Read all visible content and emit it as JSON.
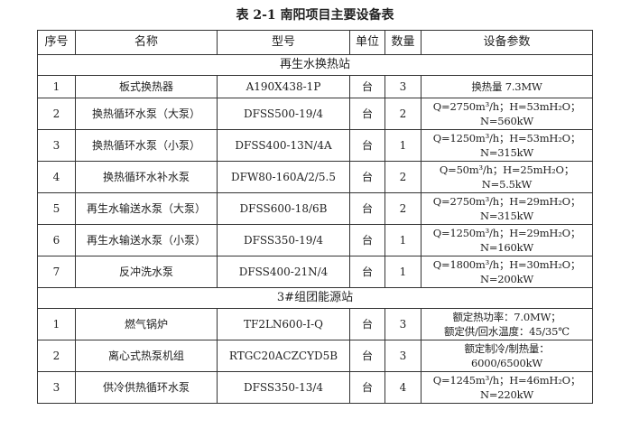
{
  "title": "表 2-1  南阳项目主要设备表",
  "headers": [
    "序号",
    "名称",
    "型号",
    "单位",
    "数量",
    "设备参数"
  ],
  "sections": [
    {
      "name": "再生水换热站",
      "rows": [
        {
          "no": "1",
          "name": "板式换热器",
          "model": "A190X438-1P",
          "unit": "台",
          "qty": "3",
          "params": [
            "换热量 7.3MW"
          ]
        },
        {
          "no": "2",
          "name": "换热循环水泵（大泵）",
          "model": "DFSS500-19/4",
          "unit": "台",
          "qty": "2",
          "params": [
            "Q=2750m³/h；H=53mH₂O；",
            "N=560kW"
          ]
        },
        {
          "no": "3",
          "name": "换热循环水泵（小泵）",
          "model": "DFSS400-13N/4A",
          "unit": "台",
          "qty": "1",
          "params": [
            "Q=1250m³/h；H=53mH₂O；",
            "N=315kW"
          ]
        },
        {
          "no": "4",
          "name": "换热循环水补水泵",
          "model": "DFW80-160A/2/5.5",
          "unit": "台",
          "qty": "2",
          "params": [
            "Q=50m³/h；H=25mH₂O；",
            "N=5.5kW"
          ]
        },
        {
          "no": "5",
          "name": "再生水输送水泵（大泵）",
          "model": "DFSS600-18/6B",
          "unit": "台",
          "qty": "2",
          "params": [
            "Q=2750m³/h；H=29mH₂O；",
            "N=315kW"
          ]
        },
        {
          "no": "6",
          "name": "再生水输送水泵（小泵）",
          "model": "DFSS350-19/4",
          "unit": "台",
          "qty": "1",
          "params": [
            "Q=1250m³/h；H=29mH₂O；",
            "N=160kW"
          ]
        },
        {
          "no": "7",
          "name": "反冲洗水泵",
          "model": "DFSS400-21N/4",
          "unit": "台",
          "qty": "1",
          "params": [
            "Q=1800m³/h；H=30mH₂O；",
            "N=200kW"
          ]
        }
      ]
    },
    {
      "name": "3#组团能源站",
      "rows": [
        {
          "no": "1",
          "name": "燃气锅炉",
          "model": "TF2LN600-I-Q",
          "unit": "台",
          "qty": "3",
          "params": [
            "额定热功率：7.0MW；",
            "额定供/回水温度：45/35℃"
          ]
        },
        {
          "no": "2",
          "name": "离心式热泵机组",
          "model": "RTGC20ACZCYD5B",
          "unit": "台",
          "qty": "3",
          "params": [
            "额定制冷/制热量：",
            "6000/6500kW"
          ]
        },
        {
          "no": "3",
          "name": "供冷供热循环水泵",
          "model": "DFSS350-13/4",
          "unit": "台",
          "qty": "4",
          "params": [
            "Q=1245m³/h；H=46mH₂O；",
            "N=220kW"
          ]
        }
      ]
    }
  ]
}
